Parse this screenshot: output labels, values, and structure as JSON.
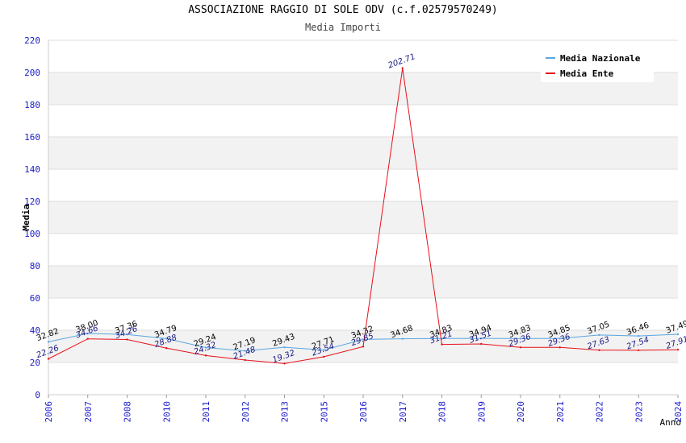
{
  "chart_data": {
    "type": "line",
    "title": "ASSOCIAZIONE RAGGIO DI SOLE ODV (c.f.02579570249)",
    "subtitle": "Media Importi",
    "xlabel": "Anno",
    "ylabel": "Media",
    "ylim": [
      0,
      220
    ],
    "ytick_step": 20,
    "grid": "horizontal, alternating bands",
    "legend_position": "top-right",
    "categories": [
      "2006",
      "2007",
      "2008",
      "2010",
      "2011",
      "2012",
      "2013",
      "2015",
      "2016",
      "2017",
      "2018",
      "2019",
      "2020",
      "2021",
      "2022",
      "2023",
      "2024"
    ],
    "series": [
      {
        "name": "Media Nazionale",
        "color": "#5aa6e0",
        "label_color": "#000000",
        "values": [
          32.82,
          38.0,
          37.36,
          34.79,
          29.24,
          27.19,
          29.43,
          27.71,
          34.32,
          34.68,
          34.83,
          34.94,
          34.83,
          34.85,
          37.05,
          36.46,
          37.49
        ],
        "labels": [
          "32.82",
          "38.00",
          "37.36",
          "34.79",
          "29.24",
          "27.19",
          "29.43",
          "27.71",
          "34.32",
          "34.68",
          "34.83",
          "34.94",
          "34.83",
          "34.85",
          "37.05",
          "36.46",
          "37.49"
        ]
      },
      {
        "name": "Media Ente",
        "color": "#e8101a",
        "label_color": "#1a1a80",
        "values": [
          22.26,
          34.66,
          34.26,
          28.88,
          24.32,
          21.48,
          19.32,
          23.54,
          29.85,
          202.71,
          31.21,
          31.51,
          29.36,
          29.36,
          27.63,
          27.54,
          27.91
        ],
        "labels": [
          "22.26",
          "34.66",
          "34.26",
          "28.88",
          "24.32",
          "21.48",
          "19.32",
          "23.54",
          "29.85",
          "202.71",
          "31.21",
          "31.51",
          "29.36",
          "29.36",
          "27.63",
          "27.54",
          "27.91"
        ]
      }
    ]
  }
}
